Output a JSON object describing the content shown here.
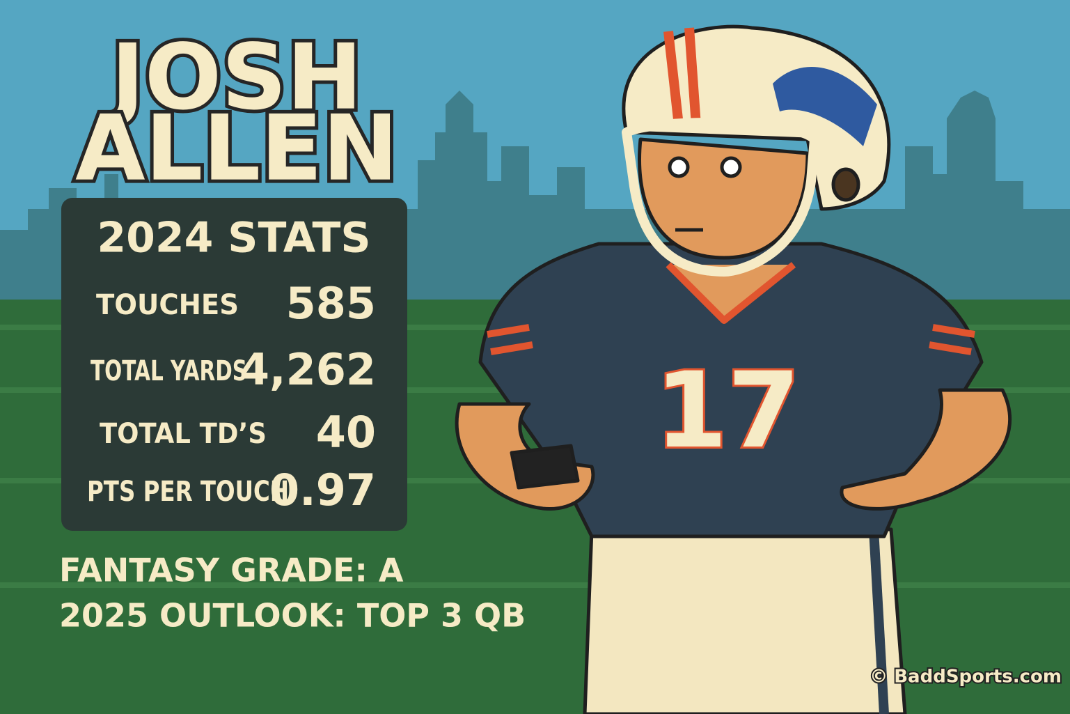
{
  "header": {
    "name_lines": [
      "JOSH",
      "ALLEN"
    ]
  },
  "stats": {
    "title": "2024 STATS",
    "rows": [
      [
        "TOUCHES",
        "585"
      ],
      [
        "TOTAL YARDS",
        "4,262"
      ],
      [
        "TOTAL TD’S",
        "40"
      ],
      [
        "PTS PER TOUCH",
        "0.97"
      ]
    ]
  },
  "footer": {
    "grade": "FANTASY GRADE: A",
    "outlook": "2025 OUTLOOK: TOP 3 QB"
  },
  "jersey": {
    "number": "17"
  },
  "credit": "© BaddSports.com"
}
